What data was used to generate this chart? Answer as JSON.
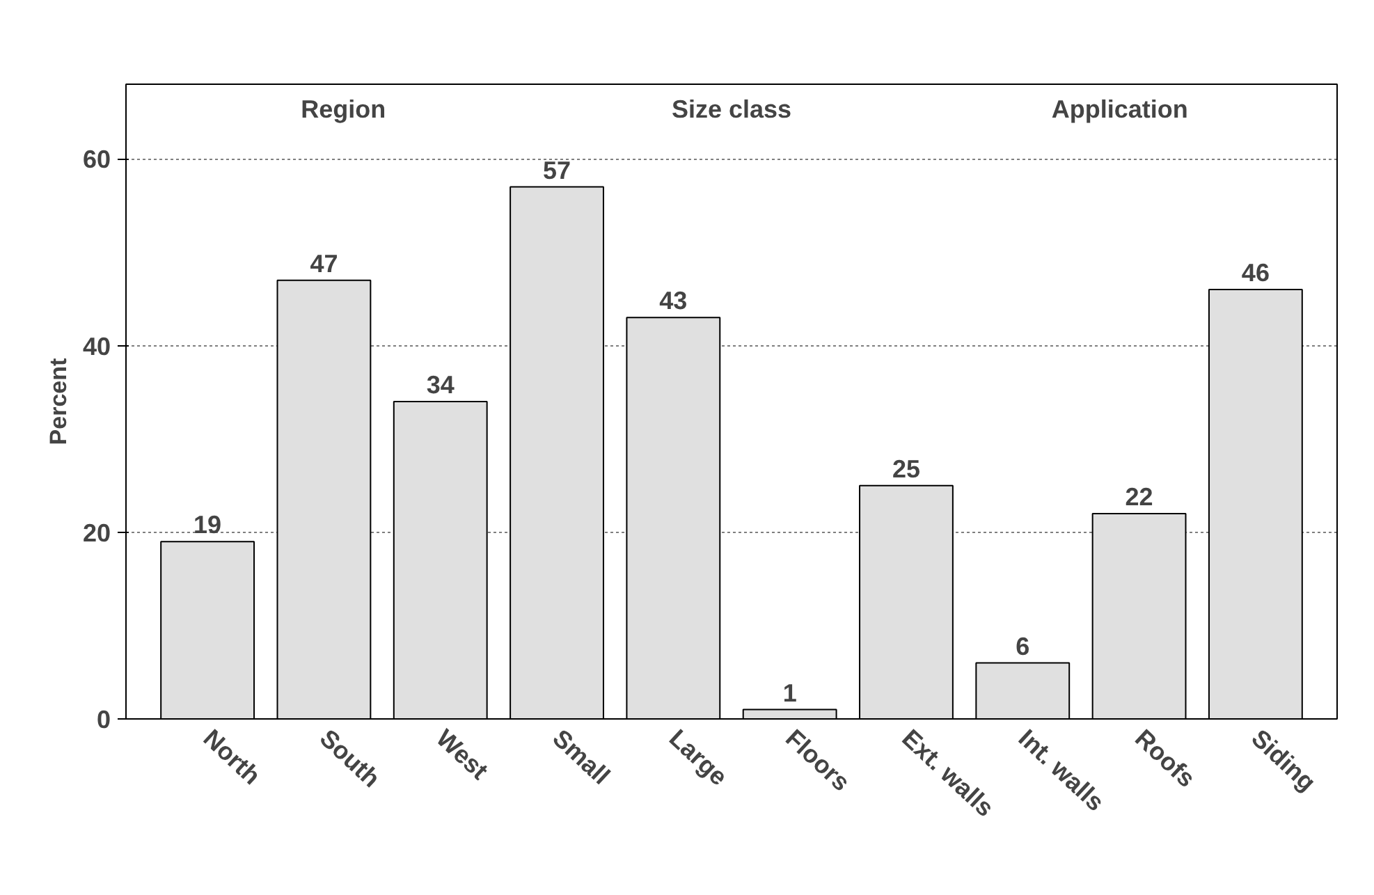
{
  "chart_data": {
    "type": "bar",
    "ylabel": "Percent",
    "categories": [
      "North",
      "South",
      "West",
      "Small",
      "Large",
      "Floors",
      "Ext. walls",
      "Int. walls",
      "Roofs",
      "Siding"
    ],
    "values": [
      19,
      47,
      34,
      57,
      43,
      1,
      25,
      6,
      22,
      46
    ],
    "color": "#e0e0e0",
    "ylim": [
      0,
      68
    ],
    "yticks": [
      0,
      20,
      40,
      60
    ],
    "grid": "y",
    "data_labels": true,
    "annotations": [
      "Region",
      "Size class",
      "Application"
    ]
  }
}
